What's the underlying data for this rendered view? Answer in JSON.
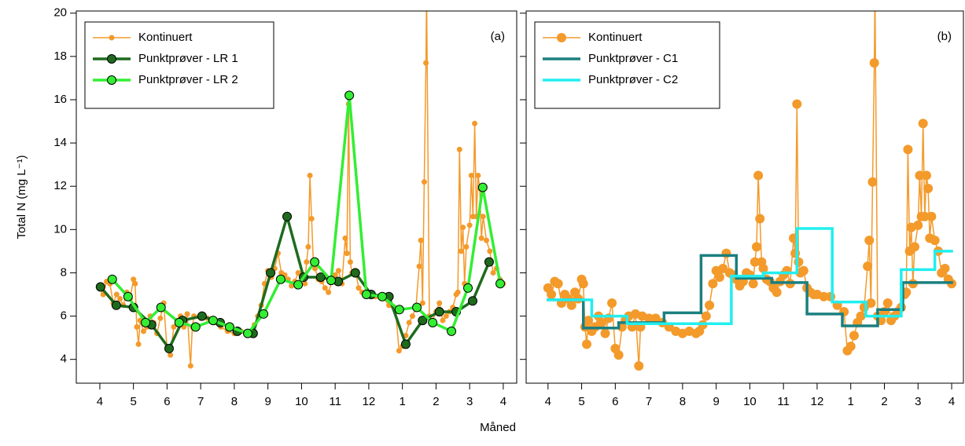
{
  "xlabel": "Måned",
  "chart_data": [
    {
      "type": "line",
      "ylabel": "Total N (mg L⁻¹)",
      "annotation": "(a)",
      "xlim": [
        -0.7,
        12.4
      ],
      "ylim": [
        2.9,
        20.1
      ],
      "xticks": [
        {
          "value": 0,
          "label": "4"
        },
        {
          "value": 1,
          "label": "5"
        },
        {
          "value": 2,
          "label": "6"
        },
        {
          "value": 3,
          "label": "7"
        },
        {
          "value": 4,
          "label": "8"
        },
        {
          "value": 5,
          "label": "9"
        },
        {
          "value": 6,
          "label": "10"
        },
        {
          "value": 7,
          "label": "11"
        },
        {
          "value": 8,
          "label": "12"
        },
        {
          "value": 9,
          "label": "1"
        },
        {
          "value": 10,
          "label": "2"
        },
        {
          "value": 11,
          "label": "3"
        },
        {
          "value": 12,
          "label": "4"
        }
      ],
      "yticks": [
        4,
        6,
        8,
        10,
        12,
        14,
        16,
        18,
        20
      ],
      "series": [
        {
          "name": "Kontinuert",
          "color": "#F39A2B",
          "marker": "small",
          "step": false,
          "x": [
            0,
            0.1,
            0.2,
            0.3,
            0.4,
            0.5,
            0.6,
            0.7,
            0.8,
            0.9,
            1.0,
            1.05,
            1.1,
            1.15,
            1.2,
            1.3,
            1.4,
            1.5,
            1.6,
            1.7,
            1.8,
            1.9,
            2.0,
            2.1,
            2.2,
            2.3,
            2.4,
            2.5,
            2.6,
            2.7,
            2.75,
            2.8,
            3.0,
            3.2,
            3.4,
            3.6,
            3.8,
            4.0,
            4.2,
            4.4,
            4.5,
            4.6,
            4.7,
            4.8,
            4.9,
            5.0,
            5.1,
            5.2,
            5.3,
            5.4,
            5.5,
            5.6,
            5.7,
            5.8,
            5.9,
            6.0,
            6.1,
            6.15,
            6.2,
            6.25,
            6.3,
            6.35,
            6.4,
            6.5,
            6.6,
            6.7,
            6.8,
            6.9,
            7.0,
            7.1,
            7.2,
            7.3,
            7.35,
            7.4,
            7.45,
            7.5,
            7.6,
            7.7,
            7.8,
            7.9,
            8.0,
            8.2,
            8.4,
            8.6,
            8.8,
            8.9,
            9.0,
            9.1,
            9.2,
            9.3,
            9.4,
            9.5,
            9.55,
            9.6,
            9.65,
            9.7,
            9.72,
            9.8,
            9.9,
            10.0,
            10.1,
            10.2,
            10.3,
            10.4,
            10.5,
            10.6,
            10.65,
            10.7,
            10.75,
            10.8,
            10.85,
            10.9,
            11.0,
            11.05,
            11.1,
            11.15,
            11.2,
            11.25,
            11.3,
            11.35,
            11.4,
            11.5,
            11.6,
            11.7,
            11.8,
            11.9,
            12.0
          ],
          "values": [
            7.3,
            7.0,
            7.6,
            7.5,
            6.6,
            7.0,
            6.8,
            6.5,
            7.1,
            6.8,
            7.7,
            7.5,
            5.5,
            4.7,
            5.8,
            5.3,
            5.5,
            6.0,
            5.7,
            5.2,
            5.9,
            6.6,
            4.5,
            4.2,
            5.5,
            5.8,
            6.0,
            5.5,
            6.1,
            3.7,
            5.5,
            6.0,
            5.9,
            5.9,
            5.7,
            5.5,
            5.3,
            5.2,
            5.3,
            5.2,
            5.3,
            5.6,
            6.0,
            6.5,
            7.5,
            8.1,
            7.8,
            8.2,
            8.9,
            8.0,
            7.9,
            7.7,
            7.4,
            7.6,
            8.0,
            7.9,
            7.5,
            8.5,
            9.2,
            12.5,
            10.5,
            8.5,
            8.2,
            7.7,
            7.6,
            7.3,
            7.1,
            7.6,
            7.9,
            8.1,
            7.5,
            9.6,
            8.9,
            15.8,
            8.5,
            8.0,
            8.1,
            7.3,
            7.1,
            7.0,
            7.0,
            6.9,
            6.9,
            6.5,
            6.2,
            4.4,
            4.6,
            5.1,
            5.7,
            6.0,
            6.4,
            8.3,
            9.5,
            6.6,
            12.2,
            17.7,
            21,
            6.0,
            5.8,
            6.2,
            6.6,
            5.8,
            6.0,
            6.2,
            6.4,
            7.0,
            7.1,
            13.7,
            9.0,
            10.1,
            7.5,
            9.2,
            10.2,
            12.5,
            10.6,
            14.9,
            10.6,
            12.5,
            11.9,
            9.6,
            10.6,
            9.5,
            9.0,
            8.0,
            8.2,
            7.7,
            7.5
          ]
        },
        {
          "name": "Punktprøver - LR 1",
          "color": "#1E6B1E",
          "marker": "large",
          "step": false,
          "x": [
            0.02,
            0.49,
            1.0,
            1.54,
            2.06,
            2.46,
            3.04,
            3.58,
            4.09,
            4.56,
            5.08,
            5.57,
            6.06,
            6.57,
            7.09,
            7.6,
            8.07,
            8.6,
            9.1,
            9.6,
            10.1,
            10.6,
            11.09,
            11.58
          ],
          "values": [
            7.35,
            6.5,
            6.4,
            5.6,
            4.5,
            5.8,
            6.0,
            5.7,
            5.3,
            5.2,
            8.0,
            10.6,
            7.8,
            7.8,
            7.6,
            8.0,
            7.0,
            6.9,
            4.7,
            5.8,
            6.2,
            6.2,
            6.7,
            8.5
          ]
        },
        {
          "name": "Punktprøver - LR 2",
          "color": "#33EE33",
          "marker": "large",
          "step": false,
          "x": [
            0.37,
            0.84,
            1.36,
            1.82,
            2.36,
            2.85,
            3.37,
            3.86,
            4.4,
            4.87,
            5.38,
            5.9,
            6.39,
            6.88,
            7.42,
            7.93,
            8.4,
            8.91,
            9.43,
            9.9,
            10.46,
            10.95,
            11.39,
            11.91
          ],
          "values": [
            7.7,
            6.9,
            5.7,
            6.4,
            5.7,
            5.5,
            5.8,
            5.5,
            5.2,
            6.1,
            7.7,
            7.45,
            8.5,
            7.65,
            16.2,
            7.0,
            6.9,
            6.3,
            6.4,
            5.7,
            5.3,
            7.3,
            11.95,
            7.5
          ]
        }
      ]
    },
    {
      "type": "line",
      "annotation": "(b)",
      "xlim": [
        -0.65,
        12.35
      ],
      "ylim": [
        2.9,
        20.1
      ],
      "xticks": [
        {
          "value": 0,
          "label": "4"
        },
        {
          "value": 1,
          "label": "5"
        },
        {
          "value": 2,
          "label": "6"
        },
        {
          "value": 3,
          "label": "7"
        },
        {
          "value": 4,
          "label": "8"
        },
        {
          "value": 5,
          "label": "9"
        },
        {
          "value": 6,
          "label": "10"
        },
        {
          "value": 7,
          "label": "11"
        },
        {
          "value": 8,
          "label": "12"
        },
        {
          "value": 9,
          "label": "1"
        },
        {
          "value": 10,
          "label": "2"
        },
        {
          "value": 11,
          "label": "3"
        },
        {
          "value": 12,
          "label": "4"
        }
      ],
      "yticks": [
        4,
        6,
        8,
        10,
        12,
        14,
        16,
        18,
        20
      ],
      "series": [
        {
          "name": "Kontinuert",
          "color": "#F39A2B",
          "marker": "medium",
          "step": false,
          "x": [
            0,
            0.1,
            0.2,
            0.3,
            0.4,
            0.5,
            0.6,
            0.7,
            0.8,
            0.9,
            1.0,
            1.05,
            1.1,
            1.15,
            1.2,
            1.3,
            1.4,
            1.5,
            1.6,
            1.7,
            1.8,
            1.9,
            2.0,
            2.1,
            2.2,
            2.3,
            2.4,
            2.5,
            2.6,
            2.7,
            2.75,
            2.8,
            3.0,
            3.2,
            3.4,
            3.6,
            3.8,
            4.0,
            4.2,
            4.4,
            4.5,
            4.6,
            4.7,
            4.8,
            4.9,
            5.0,
            5.1,
            5.2,
            5.3,
            5.4,
            5.5,
            5.6,
            5.7,
            5.8,
            5.9,
            6.0,
            6.1,
            6.15,
            6.2,
            6.25,
            6.3,
            6.35,
            6.4,
            6.5,
            6.6,
            6.7,
            6.8,
            6.9,
            7.0,
            7.1,
            7.2,
            7.3,
            7.35,
            7.4,
            7.45,
            7.5,
            7.6,
            7.7,
            7.8,
            7.9,
            8.0,
            8.2,
            8.4,
            8.6,
            8.8,
            8.9,
            9.0,
            9.1,
            9.2,
            9.3,
            9.4,
            9.5,
            9.55,
            9.6,
            9.65,
            9.7,
            9.72,
            9.8,
            9.9,
            10.0,
            10.1,
            10.2,
            10.3,
            10.4,
            10.5,
            10.6,
            10.65,
            10.7,
            10.75,
            10.8,
            10.85,
            10.9,
            11.0,
            11.05,
            11.1,
            11.15,
            11.2,
            11.25,
            11.3,
            11.35,
            11.4,
            11.5,
            11.6,
            11.7,
            11.8,
            11.9,
            12.0
          ],
          "values": [
            7.3,
            7.0,
            7.6,
            7.5,
            6.6,
            7.0,
            6.8,
            6.5,
            7.1,
            6.8,
            7.7,
            7.5,
            5.5,
            4.7,
            5.8,
            5.3,
            5.5,
            6.0,
            5.7,
            5.2,
            5.9,
            6.6,
            4.5,
            4.2,
            5.5,
            5.8,
            6.0,
            5.5,
            6.1,
            3.7,
            5.5,
            6.0,
            5.9,
            5.9,
            5.7,
            5.5,
            5.3,
            5.2,
            5.3,
            5.2,
            5.3,
            5.6,
            6.0,
            6.5,
            7.5,
            8.1,
            7.8,
            8.2,
            8.9,
            8.0,
            7.9,
            7.7,
            7.4,
            7.6,
            8.0,
            7.9,
            7.5,
            8.5,
            9.2,
            12.5,
            10.5,
            8.5,
            8.2,
            7.7,
            7.6,
            7.3,
            7.1,
            7.6,
            7.9,
            8.1,
            7.5,
            9.6,
            8.9,
            15.8,
            8.5,
            8.0,
            8.1,
            7.3,
            7.1,
            7.0,
            7.0,
            6.9,
            6.9,
            6.5,
            6.2,
            4.4,
            4.6,
            5.1,
            5.7,
            6.0,
            6.4,
            8.3,
            9.5,
            6.6,
            12.2,
            17.7,
            21,
            6.0,
            5.8,
            6.2,
            6.6,
            5.8,
            6.0,
            6.2,
            6.4,
            7.0,
            7.1,
            13.7,
            9.0,
            10.1,
            7.5,
            9.2,
            10.2,
            12.5,
            10.6,
            14.9,
            10.6,
            12.5,
            11.9,
            9.6,
            10.6,
            9.5,
            9.0,
            8.0,
            8.2,
            7.7,
            7.5
          ]
        },
        {
          "name": "Punktprøver - C1",
          "color": "#1B7F7F",
          "marker": "none",
          "step": true,
          "x": [
            0,
            1.05,
            2.1,
            3.45,
            4.55,
            5.6,
            6.65,
            7.7,
            8.75,
            9.8,
            10.55
          ],
          "values": [
            6.75,
            5.45,
            5.7,
            6.15,
            8.8,
            7.75,
            7.55,
            6.1,
            5.55,
            6.3,
            7.55
          ]
        },
        {
          "name": "Punktprøver - C2",
          "color": "#22EEEE",
          "marker": "none",
          "step": true,
          "x": [
            0,
            1.3,
            2.35,
            5.45,
            6.4,
            7.4,
            8.45,
            9.45,
            10.5,
            11.5
          ],
          "values": [
            6.75,
            6.0,
            5.65,
            7.85,
            8.0,
            10.05,
            6.65,
            6.0,
            8.15,
            9.0
          ]
        }
      ]
    }
  ]
}
